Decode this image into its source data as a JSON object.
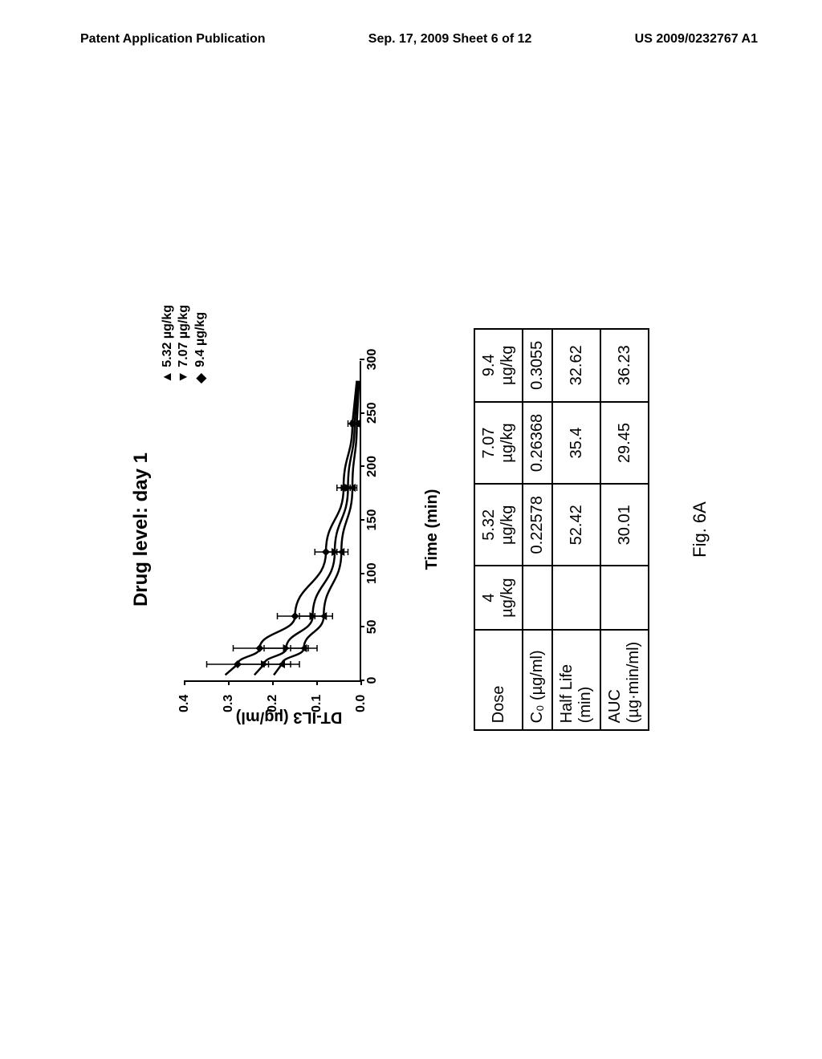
{
  "header": {
    "left": "Patent Application Publication",
    "center": "Sep. 17, 2009  Sheet 6 of 12",
    "right": "US 2009/0232767 A1"
  },
  "chart": {
    "type": "line",
    "title": "Drug level: day 1",
    "ylabel": "DT-IL3 (µg/ml)",
    "xlabel": "Time (min)",
    "xlim": [
      0,
      300
    ],
    "ylim": [
      0,
      0.4
    ],
    "xtick_step": 50,
    "yticks": [
      "0.0",
      "0.1",
      "0.2",
      "0.3",
      "0.4"
    ],
    "xticks": [
      "0",
      "50",
      "100",
      "150",
      "200",
      "250",
      "300"
    ],
    "legend": [
      {
        "marker": "▲",
        "label": "5.32 µg/kg"
      },
      {
        "marker": "▼",
        "label": "7.07 µg/kg"
      },
      {
        "marker": "◆",
        "label": "9.4 µg/kg"
      }
    ],
    "series": [
      {
        "name": "5.32",
        "marker": "triangle-up",
        "points": [
          {
            "x": 15,
            "y": 0.18,
            "err": 0.04
          },
          {
            "x": 30,
            "y": 0.13,
            "err": 0.03
          },
          {
            "x": 60,
            "y": 0.085,
            "err": 0.02
          },
          {
            "x": 120,
            "y": 0.045,
            "err": 0.015
          },
          {
            "x": 180,
            "y": 0.02,
            "err": 0.01
          },
          {
            "x": 240,
            "y": 0.01,
            "err": 0.005
          }
        ]
      },
      {
        "name": "7.07",
        "marker": "triangle-down",
        "points": [
          {
            "x": 15,
            "y": 0.22,
            "err": 0.06
          },
          {
            "x": 30,
            "y": 0.17,
            "err": 0.05
          },
          {
            "x": 60,
            "y": 0.11,
            "err": 0.03
          },
          {
            "x": 120,
            "y": 0.06,
            "err": 0.02
          },
          {
            "x": 180,
            "y": 0.03,
            "err": 0.015
          },
          {
            "x": 240,
            "y": 0.015,
            "err": 0.008
          }
        ]
      },
      {
        "name": "9.4",
        "marker": "diamond",
        "points": [
          {
            "x": 15,
            "y": 0.28,
            "err": 0.07
          },
          {
            "x": 30,
            "y": 0.23,
            "err": 0.06
          },
          {
            "x": 60,
            "y": 0.15,
            "err": 0.04
          },
          {
            "x": 120,
            "y": 0.08,
            "err": 0.025
          },
          {
            "x": 180,
            "y": 0.04,
            "err": 0.015
          },
          {
            "x": 240,
            "y": 0.02,
            "err": 0.01
          }
        ]
      }
    ]
  },
  "table": {
    "columns": [
      "Dose",
      "4\nµg/kg",
      "5.32\nµg/kg",
      "7.07\nµg/kg",
      "9.4\nµg/kg"
    ],
    "rows": [
      {
        "header": "C₀ (µg/ml)",
        "values": [
          "",
          "0.22578",
          "0.26368",
          "0.3055"
        ]
      },
      {
        "header": "Half Life\n(min)",
        "values": [
          "",
          "52.42",
          "35.4",
          "32.62"
        ]
      },
      {
        "header": "AUC\n(µg·min/ml)",
        "values": [
          "",
          "30.01",
          "29.45",
          "36.23"
        ]
      }
    ]
  },
  "figure_label": "Fig. 6A"
}
